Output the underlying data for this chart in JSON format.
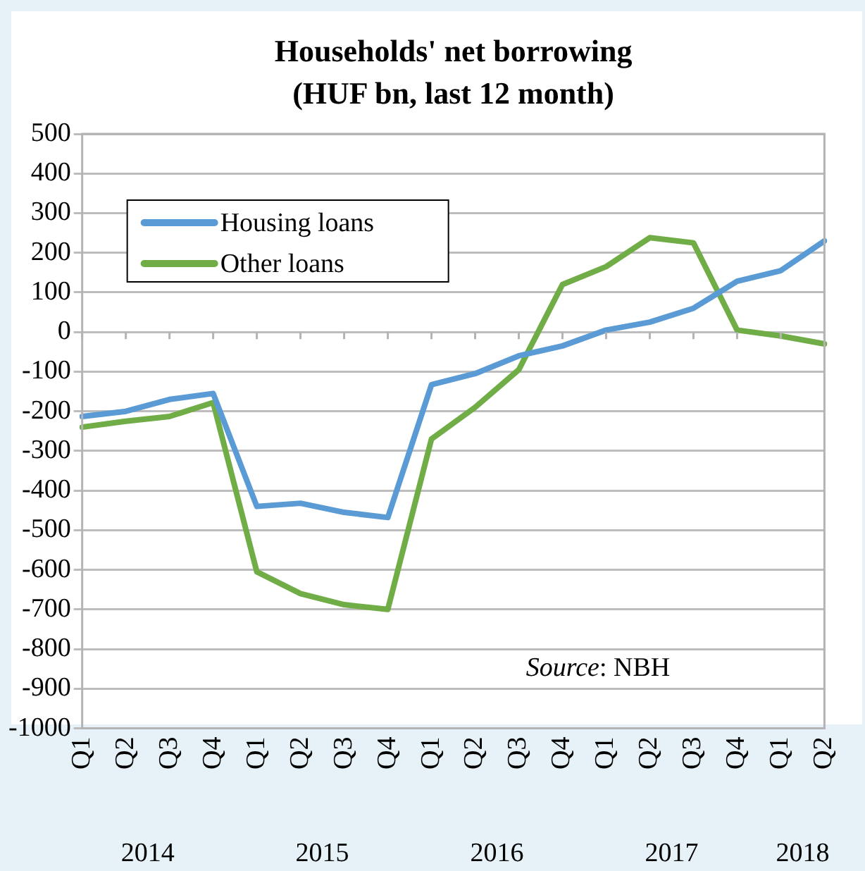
{
  "chart_data": {
    "type": "line",
    "title": "Households' net borrowing",
    "subtitle": "(HUF bn, last 12 month)",
    "categories": [
      "Q1",
      "Q2",
      "Q3",
      "Q4",
      "Q1",
      "Q2",
      "Q3",
      "Q4",
      "Q1",
      "Q2",
      "Q3",
      "Q4",
      "Q1",
      "Q2",
      "Q3",
      "Q4",
      "Q1",
      "Q2"
    ],
    "series": [
      {
        "name": "Housing loans",
        "color": "#5b9bd5",
        "values": [
          -213,
          -200,
          -170,
          -155,
          -440,
          -432,
          -455,
          -468,
          -133,
          -105,
          -60,
          -35,
          5,
          25,
          60,
          128,
          155,
          230
        ]
      },
      {
        "name": "Other loans",
        "color": "#70ad47",
        "values": [
          -240,
          -225,
          -213,
          -178,
          -605,
          -660,
          -688,
          -700,
          -270,
          -190,
          -95,
          120,
          165,
          238,
          225,
          5,
          -10,
          -30
        ]
      }
    ],
    "ylim": [
      -1000,
      500
    ],
    "yticks": [
      -1000,
      -900,
      -800,
      -700,
      -600,
      -500,
      -400,
      -300,
      -200,
      -100,
      0,
      100,
      200,
      300,
      400,
      500
    ],
    "grid": "y",
    "legend": "top left",
    "marker": "none",
    "line_style": "solid",
    "annotations": [
      "Source: NBH",
      "2014",
      "2015",
      "2016",
      "2017",
      "2018"
    ]
  }
}
